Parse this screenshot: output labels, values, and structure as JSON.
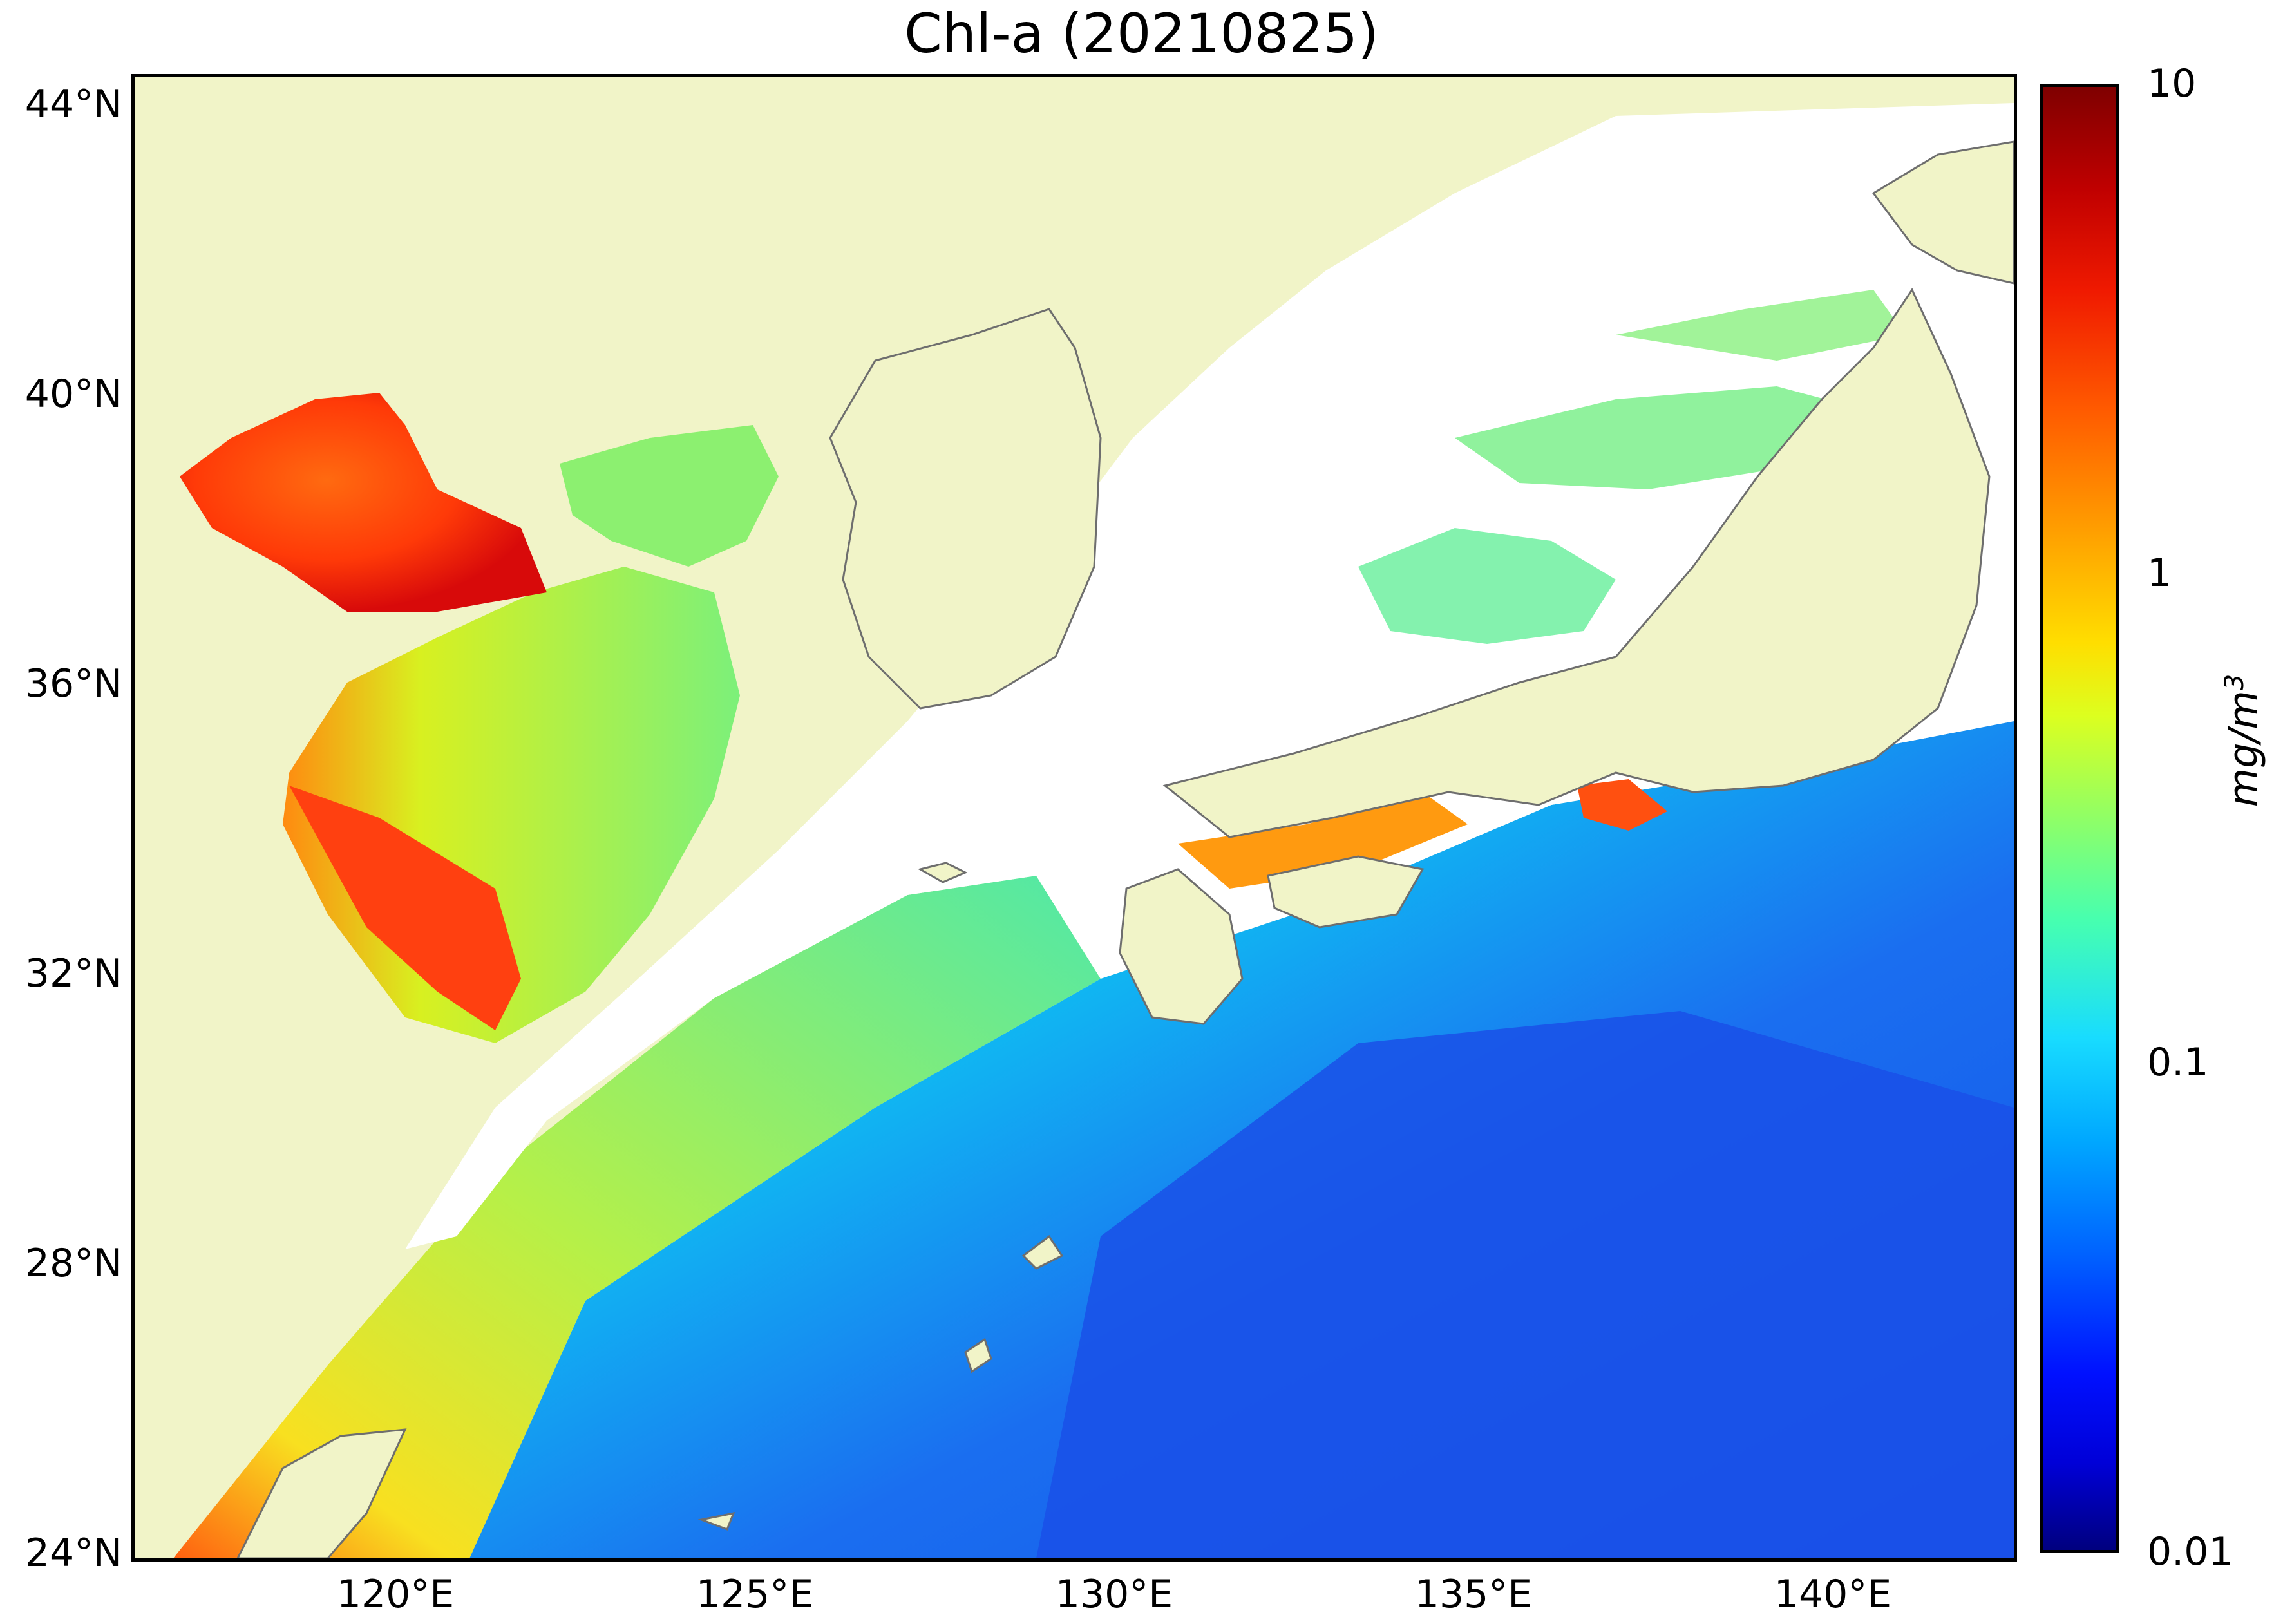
{
  "title": "Chl-a (20210825)",
  "map": {
    "latitude_labels": [
      "44°N",
      "40°N",
      "36°N",
      "32°N",
      "28°N",
      "24°N"
    ],
    "longitude_labels": [
      "120°E",
      "125°E",
      "130°E",
      "135°E",
      "140°E"
    ],
    "extent": {
      "lon_min": 116.8,
      "lon_max": 143.0,
      "lat_min": 24.0,
      "lat_max": 44.5
    },
    "colors": {
      "land": "#f1f4c8",
      "no_data": "#ffffff",
      "coastline": "#6e6e6e",
      "ocean_low": "#1a50e8",
      "ocean_mid": "#12c8f0",
      "coastal_high": "#ff4010"
    }
  },
  "colorbar": {
    "ticks": [
      "10",
      "1",
      "0.1",
      "0.01"
    ],
    "unit": "mg/m3",
    "unit_base": "mg/m",
    "unit_sup": "3",
    "scale": "log",
    "range": [
      0.01,
      10
    ],
    "colormap": "jet"
  }
}
